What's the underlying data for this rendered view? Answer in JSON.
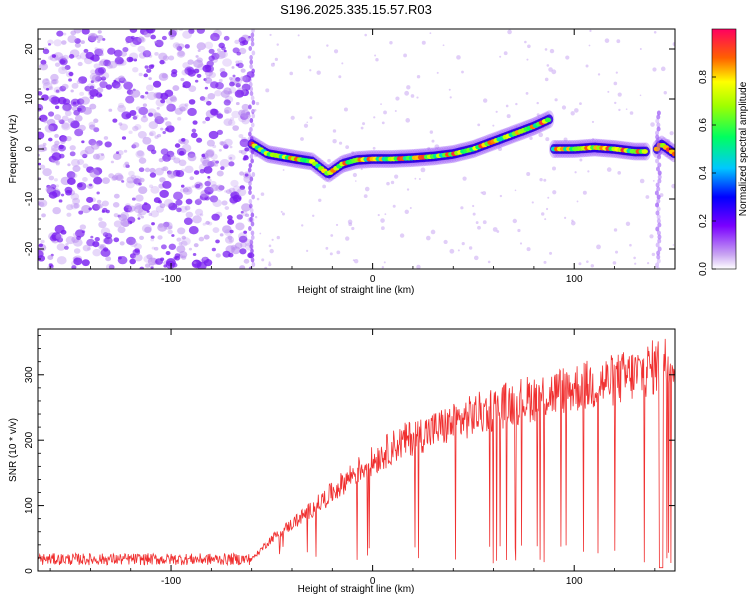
{
  "title": "S196.2025.335.15.57.R03",
  "chart_data": [
    {
      "type": "heatmap",
      "name": "spectrogram",
      "xlabel": "Height of straight line (km)",
      "ylabel": "Frequency (Hz)",
      "xlim": [
        -166,
        150
      ],
      "ylim": [
        -24,
        24
      ],
      "xticks": [
        -100,
        0,
        100
      ],
      "yticks": [
        20,
        10,
        0,
        -10,
        -20
      ],
      "colorbar": {
        "label": "Normalized spectral amplitude",
        "range": [
          0,
          1
        ],
        "ticks": [
          0.0,
          0.2,
          0.4,
          0.6,
          0.8
        ]
      },
      "noise_region_x": [
        -166,
        -60
      ],
      "ridge": {
        "x": [
          -60,
          -52,
          -45,
          -38,
          -30,
          -22,
          -15,
          -8,
          0,
          10,
          20,
          30,
          40,
          50,
          60,
          70,
          80,
          88
        ],
        "y": [
          1,
          -1,
          -1.5,
          -2,
          -2.5,
          -5,
          -3,
          -2.2,
          -2,
          -2,
          -1.8,
          -1.5,
          -1,
          0,
          1.5,
          3,
          4.5,
          6
        ]
      },
      "ridge2": {
        "x": [
          90,
          100,
          110,
          120,
          130,
          136
        ],
        "y": [
          0,
          0,
          0.3,
          0,
          -0.5,
          -0.5
        ]
      },
      "ridge3": {
        "x": [
          141,
          143,
          150
        ],
        "y": [
          0,
          1,
          -1
        ]
      }
    },
    {
      "type": "line",
      "name": "snr",
      "xlabel": "Height of straight line (km)",
      "ylabel": "SNR (10 * v/v)",
      "xlim": [
        -166,
        150
      ],
      "ylim": [
        0,
        370
      ],
      "xticks": [
        -100,
        0,
        100
      ],
      "yticks": [
        0,
        100,
        200,
        300
      ],
      "color": "#f03030",
      "trend": {
        "x": [
          -166,
          -60,
          -50,
          -40,
          -30,
          -20,
          -10,
          0,
          10,
          20,
          30,
          40,
          50,
          60,
          70,
          80,
          90,
          100,
          110,
          120,
          130,
          140,
          150
        ],
        "y": [
          18,
          18,
          50,
          72,
          95,
          120,
          148,
          168,
          190,
          205,
          215,
          225,
          238,
          248,
          258,
          265,
          272,
          280,
          285,
          292,
          300,
          312,
          325
        ]
      },
      "dropouts_x": [
        142,
        144
      ]
    }
  ],
  "colors": {
    "snr": "#f03030",
    "noise": "#8a2be2"
  }
}
